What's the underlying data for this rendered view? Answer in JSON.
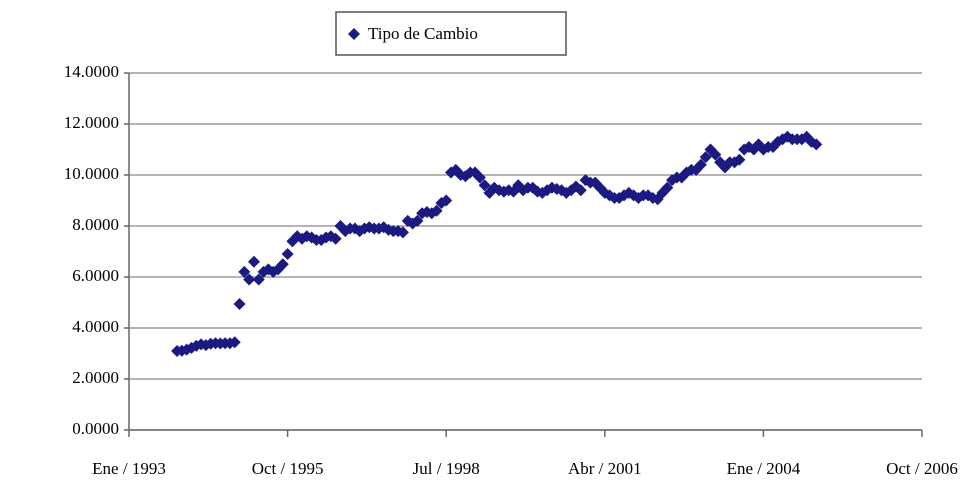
{
  "chart_data": {
    "type": "scatter",
    "series": [
      {
        "name": "Tipo de Cambio",
        "color": "#1a1a80",
        "x": [
          "1993-11",
          "1993-12",
          "1994-01",
          "1994-02",
          "1994-03",
          "1994-04",
          "1994-05",
          "1994-06",
          "1994-07",
          "1994-08",
          "1994-09",
          "1994-10",
          "1994-11",
          "1994-12",
          "1995-01",
          "1995-02",
          "1995-03",
          "1995-04",
          "1995-05",
          "1995-06",
          "1995-07",
          "1995-08",
          "1995-09",
          "1995-10",
          "1995-11",
          "1995-12",
          "1996-01",
          "1996-02",
          "1996-03",
          "1996-04",
          "1996-05",
          "1996-06",
          "1996-07",
          "1996-08",
          "1996-09",
          "1996-10",
          "1996-11",
          "1996-12",
          "1997-01",
          "1997-02",
          "1997-03",
          "1997-04",
          "1997-05",
          "1997-06",
          "1997-07",
          "1997-08",
          "1997-09",
          "1997-10",
          "1997-11",
          "1997-12",
          "1998-01",
          "1998-02",
          "1998-03",
          "1998-04",
          "1998-05",
          "1998-06",
          "1998-07",
          "1998-08",
          "1998-09",
          "1998-10",
          "1998-11",
          "1998-12",
          "1999-01",
          "1999-02",
          "1999-03",
          "1999-04",
          "1999-05",
          "1999-06",
          "1999-07",
          "1999-08",
          "1999-09",
          "1999-10",
          "1999-11",
          "1999-12",
          "2000-01",
          "2000-02",
          "2000-03",
          "2000-04",
          "2000-05",
          "2000-06",
          "2000-07",
          "2000-08",
          "2000-09",
          "2000-10",
          "2000-11",
          "2000-12",
          "2001-01",
          "2001-02",
          "2001-03",
          "2001-04",
          "2001-05",
          "2001-06",
          "2001-07",
          "2001-08",
          "2001-09",
          "2001-10",
          "2001-11",
          "2001-12",
          "2002-01",
          "2002-02",
          "2002-03",
          "2002-04",
          "2002-05",
          "2002-06",
          "2002-07",
          "2002-08",
          "2002-09",
          "2002-10",
          "2002-11",
          "2002-12",
          "2003-01",
          "2003-02",
          "2003-03",
          "2003-04",
          "2003-05",
          "2003-06",
          "2003-07",
          "2003-08",
          "2003-09",
          "2003-10",
          "2003-11",
          "2003-12",
          "2004-01",
          "2004-02",
          "2004-03",
          "2004-04",
          "2004-05",
          "2004-06",
          "2004-07",
          "2004-08",
          "2004-09",
          "2004-10",
          "2004-11",
          "2004-12"
        ],
        "values": [
          3.1,
          3.11,
          3.15,
          3.22,
          3.3,
          3.36,
          3.33,
          3.38,
          3.4,
          3.39,
          3.4,
          3.4,
          3.44,
          4.94,
          6.2,
          5.9,
          6.6,
          5.9,
          6.2,
          6.3,
          6.2,
          6.3,
          6.5,
          6.9,
          7.4,
          7.6,
          7.5,
          7.6,
          7.55,
          7.45,
          7.45,
          7.55,
          7.6,
          7.5,
          8.0,
          7.8,
          7.9,
          7.9,
          7.8,
          7.9,
          7.95,
          7.9,
          7.9,
          7.95,
          7.85,
          7.8,
          7.8,
          7.75,
          8.2,
          8.1,
          8.2,
          8.5,
          8.55,
          8.5,
          8.6,
          8.9,
          9.0,
          10.1,
          10.2,
          10.0,
          9.95,
          10.1,
          10.1,
          9.9,
          9.6,
          9.3,
          9.5,
          9.4,
          9.35,
          9.4,
          9.35,
          9.6,
          9.4,
          9.5,
          9.5,
          9.35,
          9.3,
          9.4,
          9.5,
          9.45,
          9.4,
          9.3,
          9.4,
          9.55,
          9.4,
          9.8,
          9.7,
          9.7,
          9.5,
          9.3,
          9.2,
          9.1,
          9.1,
          9.2,
          9.3,
          9.2,
          9.1,
          9.2,
          9.2,
          9.1,
          9.05,
          9.3,
          9.5,
          9.8,
          9.9,
          9.9,
          10.1,
          10.2,
          10.2,
          10.4,
          10.7,
          11.0,
          10.8,
          10.5,
          10.3,
          10.5,
          10.5,
          10.6,
          11.0,
          11.1,
          11.0,
          11.2,
          11.0,
          11.1,
          11.1,
          11.3,
          11.4,
          11.5,
          11.4,
          11.4,
          11.4,
          11.5,
          11.3,
          11.2
        ]
      }
    ],
    "xlim": [
      "1993-01",
      "2006-10"
    ],
    "xticks": [
      {
        "value": "1993-01",
        "label": "Ene / 1993"
      },
      {
        "value": "1995-10",
        "label": "Oct / 1995"
      },
      {
        "value": "1998-07",
        "label": "Jul / 1998"
      },
      {
        "value": "2001-04",
        "label": "Abr / 2001"
      },
      {
        "value": "2004-01",
        "label": "Ene / 2004"
      },
      {
        "value": "2006-10",
        "label": "Oct / 2006"
      }
    ],
    "ylim": [
      0,
      14
    ],
    "yticks": [
      {
        "value": 0,
        "label": "0.0000"
      },
      {
        "value": 2,
        "label": "2.0000"
      },
      {
        "value": 4,
        "label": "4.0000"
      },
      {
        "value": 6,
        "label": "6.0000"
      },
      {
        "value": 8,
        "label": "8.0000"
      },
      {
        "value": 10,
        "label": "10.0000"
      },
      {
        "value": 12,
        "label": "12.0000"
      },
      {
        "value": 14,
        "label": "14.0000"
      }
    ],
    "grid": true,
    "legend": "top"
  }
}
